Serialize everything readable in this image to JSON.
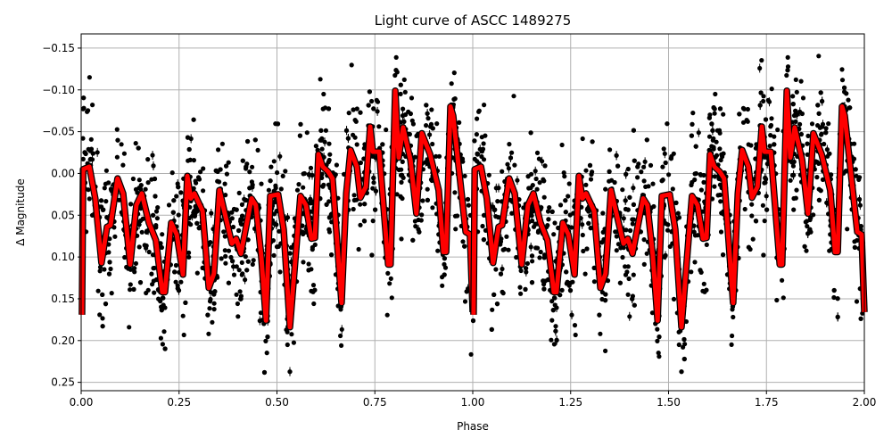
{
  "chart_data": {
    "type": "scatter",
    "title": "Light curve of ASCC 1489275",
    "xlabel": "Phase",
    "ylabel": "Δ Magnitude",
    "xlim": [
      0,
      2
    ],
    "ylim": [
      0.26,
      -0.167
    ],
    "y_inverted": true,
    "grid": true,
    "xticks": [
      "0.00",
      "0.25",
      "0.50",
      "0.75",
      "1.00",
      "1.25",
      "1.50",
      "1.75",
      "2.00"
    ],
    "xtick_values": [
      0,
      0.25,
      0.5,
      0.75,
      1,
      1.25,
      1.5,
      1.75,
      2
    ],
    "yticks": [
      "−0.15",
      "−0.10",
      "−0.05",
      "0.00",
      "0.05",
      "0.10",
      "0.15",
      "0.20",
      "0.25"
    ],
    "ytick_values": [
      -0.15,
      -0.1,
      -0.05,
      0,
      0.05,
      0.1,
      0.15,
      0.2,
      0.25
    ],
    "colors": {
      "observations": "#000000",
      "model": "#ff0000",
      "grid": "#b0b0b0"
    },
    "model": {
      "period_repeats": [
        0,
        1
      ],
      "x": [
        0.002,
        0.005,
        0.021,
        0.036,
        0.052,
        0.066,
        0.075,
        0.093,
        0.107,
        0.125,
        0.141,
        0.155,
        0.173,
        0.191,
        0.207,
        0.214,
        0.23,
        0.244,
        0.26,
        0.271,
        0.28,
        0.289,
        0.31,
        0.326,
        0.339,
        0.353,
        0.367,
        0.385,
        0.396,
        0.408,
        0.435,
        0.446,
        0.46,
        0.472,
        0.483,
        0.503,
        0.517,
        0.533,
        0.56,
        0.574,
        0.588,
        0.597,
        0.606,
        0.617,
        0.631,
        0.642,
        0.665,
        0.677,
        0.688,
        0.704,
        0.713,
        0.727,
        0.738,
        0.745,
        0.761,
        0.784,
        0.79,
        0.802,
        0.811,
        0.822,
        0.841,
        0.856,
        0.87,
        0.891,
        0.913,
        0.925,
        0.932,
        0.943,
        0.95,
        0.982,
        0.993,
        1.0
      ],
      "y": [
        0.169,
        -0.005,
        -0.008,
        0.03,
        0.107,
        0.064,
        0.062,
        0.006,
        0.024,
        0.109,
        0.038,
        0.024,
        0.059,
        0.08,
        0.142,
        0.142,
        0.059,
        0.073,
        0.121,
        0.003,
        0.03,
        0.024,
        0.045,
        0.137,
        0.12,
        0.02,
        0.048,
        0.084,
        0.078,
        0.096,
        0.03,
        0.038,
        0.099,
        0.176,
        0.027,
        0.025,
        0.067,
        0.184,
        0.027,
        0.038,
        0.078,
        0.077,
        -0.023,
        -0.008,
        -0.002,
        0.006,
        0.155,
        0.024,
        -0.028,
        -0.008,
        0.029,
        0.016,
        -0.056,
        -0.026,
        -0.026,
        0.109,
        0.109,
        -0.099,
        -0.019,
        -0.055,
        -0.016,
        0.048,
        -0.048,
        -0.023,
        0.02,
        0.094,
        0.094,
        -0.08,
        -0.069,
        0.07,
        0.073,
        0.166
      ]
    }
  }
}
